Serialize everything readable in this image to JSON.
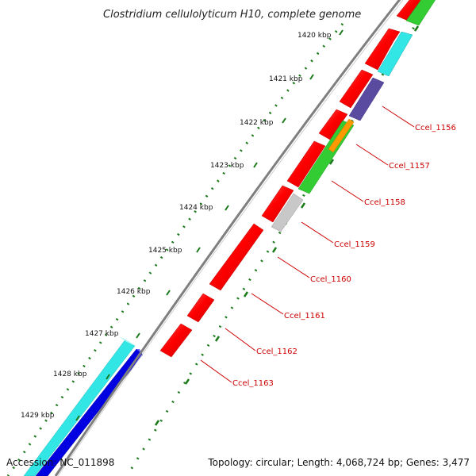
{
  "title": "Clostridium cellulolyticum H10, complete genome",
  "footer": {
    "accession": "Accession: NC_011898",
    "summary": "Topology: circular; Length: 4,068,724 bp; Genes: 3,477"
  },
  "ticks": [
    {
      "label": "1420 kbp"
    },
    {
      "label": "1421 kbp"
    },
    {
      "label": "1422 kbp"
    },
    {
      "label": "1423 kbp"
    },
    {
      "label": "1424 kbp"
    },
    {
      "label": "1425 kbp"
    },
    {
      "label": "1426 kbp"
    },
    {
      "label": "1427 kbp"
    },
    {
      "label": "1428 kbp"
    },
    {
      "label": "1429 kbp"
    }
  ],
  "genes": [
    {
      "label": "Ccel_1156"
    },
    {
      "label": "Ccel_1157"
    },
    {
      "label": "Ccel_1158"
    },
    {
      "label": "Ccel_1159"
    },
    {
      "label": "Ccel_1160"
    },
    {
      "label": "Ccel_1161"
    },
    {
      "label": "Ccel_1162"
    },
    {
      "label": "Ccel_1163"
    }
  ],
  "colors": {
    "cds": "#ff0000",
    "backbone": "#7f7f7f",
    "tick_dots": "#1a7a1a",
    "label_text": "#cc0000",
    "cyan": "#33e6e6",
    "blue": "#0000e0",
    "green": "#33cc33",
    "purple": "#5a4aa0",
    "orange": "#ff9900",
    "grey": "#c8c8c8"
  }
}
